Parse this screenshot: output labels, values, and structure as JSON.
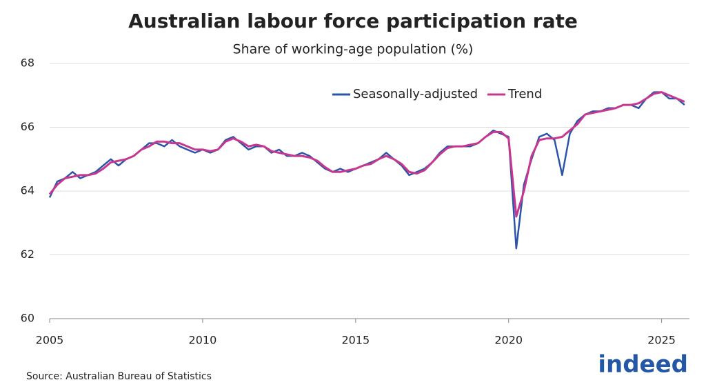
{
  "chart_data": {
    "type": "line",
    "title": "Australian labour force participation rate",
    "subtitle": "Share of working-age population (%)",
    "source": "Source: Australian Bureau of Statistics",
    "logo": "indeed",
    "x": [
      2005,
      2005.25,
      2005.5,
      2005.75,
      2006,
      2006.25,
      2006.5,
      2006.75,
      2007,
      2007.25,
      2007.5,
      2007.75,
      2008,
      2008.25,
      2008.5,
      2008.75,
      2009,
      2009.25,
      2009.5,
      2009.75,
      2010,
      2010.25,
      2010.5,
      2010.75,
      2011,
      2011.25,
      2011.5,
      2011.75,
      2012,
      2012.25,
      2012.5,
      2012.75,
      2013,
      2013.25,
      2013.5,
      2013.75,
      2014,
      2014.25,
      2014.5,
      2014.75,
      2015,
      2015.25,
      2015.5,
      2015.75,
      2016,
      2016.25,
      2016.5,
      2016.75,
      2017,
      2017.25,
      2017.5,
      2017.75,
      2018,
      2018.25,
      2018.5,
      2018.75,
      2019,
      2019.25,
      2019.5,
      2019.75,
      2020,
      2020.25,
      2020.5,
      2020.75,
      2021,
      2021.25,
      2021.5,
      2021.75,
      2022,
      2022.25,
      2022.5,
      2022.75,
      2023,
      2023.25,
      2023.5,
      2023.75,
      2024,
      2024.25,
      2024.5,
      2024.75,
      2025,
      2025.25,
      2025.5,
      2025.75
    ],
    "series": [
      {
        "name": "Seasonally-adjusted",
        "color": "#2a55a8",
        "values": [
          63.8,
          64.3,
          64.4,
          64.6,
          64.4,
          64.5,
          64.6,
          64.8,
          65.0,
          64.8,
          65.0,
          65.1,
          65.3,
          65.5,
          65.5,
          65.4,
          65.6,
          65.4,
          65.3,
          65.2,
          65.3,
          65.2,
          65.3,
          65.6,
          65.7,
          65.5,
          65.3,
          65.4,
          65.4,
          65.2,
          65.3,
          65.1,
          65.1,
          65.2,
          65.1,
          64.9,
          64.7,
          64.6,
          64.7,
          64.6,
          64.7,
          64.8,
          64.9,
          65.0,
          65.2,
          65.0,
          64.8,
          64.5,
          64.6,
          64.7,
          64.9,
          65.2,
          65.4,
          65.4,
          65.4,
          65.4,
          65.5,
          65.7,
          65.9,
          65.8,
          65.7,
          62.2,
          64.2,
          65.0,
          65.7,
          65.8,
          65.6,
          64.5,
          65.8,
          66.2,
          66.4,
          66.5,
          66.5,
          66.6,
          66.6,
          66.7,
          66.7,
          66.6,
          66.9,
          67.1,
          67.1,
          66.9,
          66.9,
          66.7
        ]
      },
      {
        "name": "Trend",
        "color": "#c8378f",
        "values": [
          63.9,
          64.2,
          64.4,
          64.45,
          64.5,
          64.5,
          64.55,
          64.7,
          64.9,
          64.95,
          65.0,
          65.1,
          65.3,
          65.4,
          65.55,
          65.55,
          65.5,
          65.5,
          65.4,
          65.3,
          65.3,
          65.25,
          65.3,
          65.55,
          65.65,
          65.55,
          65.4,
          65.45,
          65.4,
          65.25,
          65.2,
          65.15,
          65.1,
          65.1,
          65.05,
          64.95,
          64.75,
          64.6,
          64.6,
          64.65,
          64.7,
          64.8,
          64.85,
          65.0,
          65.1,
          65.0,
          64.85,
          64.6,
          64.55,
          64.65,
          64.9,
          65.15,
          65.35,
          65.4,
          65.4,
          65.45,
          65.5,
          65.7,
          65.85,
          65.85,
          65.65,
          63.2,
          64.0,
          65.1,
          65.6,
          65.65,
          65.65,
          65.7,
          65.9,
          66.1,
          66.4,
          66.45,
          66.5,
          66.55,
          66.6,
          66.7,
          66.7,
          66.75,
          66.9,
          67.05,
          67.1,
          67.0,
          66.9,
          66.8
        ]
      }
    ],
    "xlim": [
      2005,
      2026
    ],
    "xticks": [
      2005,
      2010,
      2015,
      2020,
      2025
    ],
    "ylim": [
      60,
      68
    ],
    "yticks": [
      60,
      62,
      64,
      66,
      68
    ],
    "grid": true
  }
}
